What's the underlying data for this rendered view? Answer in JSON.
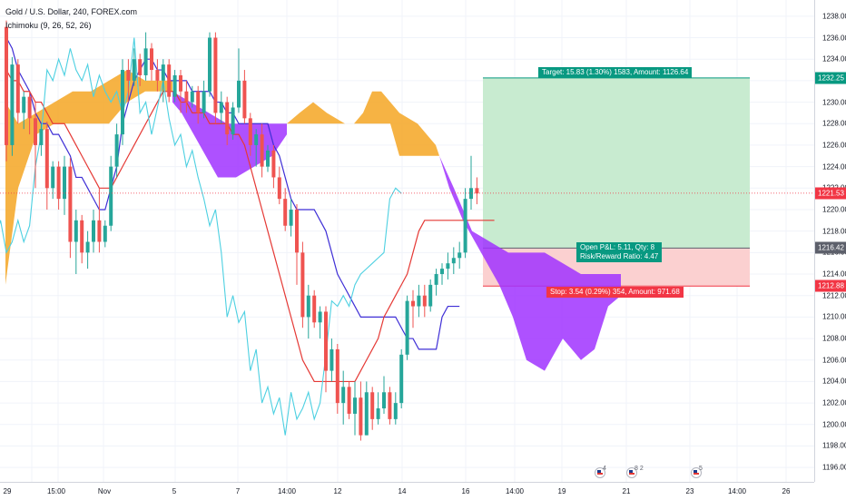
{
  "legend": {
    "symbol_line": "Gold / U.S. Dollar, 240, FOREX.com",
    "indicator_line": "Ichimoku (9, 26, 52, 26)"
  },
  "price_axis": {
    "ticks": [
      "1238.00",
      "1236.00",
      "1234.00",
      "1232.00",
      "1230.00",
      "1228.00",
      "1226.00",
      "1224.00",
      "1222.00",
      "1220.00",
      "1218.00",
      "1216.00",
      "1214.00",
      "1212.00",
      "1210.00",
      "1208.00",
      "1206.00",
      "1204.00",
      "1202.00",
      "1200.00",
      "1198.00",
      "1196.00"
    ],
    "tick_values": [
      1238,
      1236,
      1234,
      1232,
      1230,
      1228,
      1226,
      1224,
      1222,
      1220,
      1218,
      1216,
      1214,
      1212,
      1210,
      1208,
      1206,
      1204,
      1202,
      1200,
      1198,
      1196
    ],
    "tags": [
      {
        "label": "1232.25",
        "value": 1232.25,
        "color": "#089981"
      },
      {
        "label": "1221.53",
        "value": 1221.53,
        "color": "#f23645"
      },
      {
        "label": "1216.42",
        "value": 1216.42,
        "color": "#5d606b"
      },
      {
        "label": "1212.88",
        "value": 1212.88,
        "color": "#f23645"
      }
    ]
  },
  "time_axis": {
    "labels": [
      "29",
      "15:00",
      "Nov",
      "5",
      "7",
      "14:00",
      "12",
      "14",
      "16",
      "14:00",
      "19",
      "21",
      "23",
      "14:00",
      "26"
    ]
  },
  "position": {
    "target_label": "Target: 15.83 (1.30%) 1583, Amount: 1126.64",
    "center_label_line1": "Open P&L: 5.11, Qty: 8",
    "center_label_line2": "Risk/Reward Ratio: 4.47",
    "stop_label": "Stop: 3.54 (0.29%) 354, Amount: 971.68",
    "entry": 1216.42,
    "target": 1232.25,
    "stop": 1212.88,
    "current": 1221.53
  },
  "events": [
    {
      "count": "4",
      "icon": "us-flag-icon"
    },
    {
      "count": "8 2",
      "icon": "us-flag-icon"
    },
    {
      "count": "5",
      "icon": "us-flag-icon"
    }
  ],
  "colors": {
    "up": "#26a69a",
    "down": "#ef5350",
    "tenkan": "#3f2fd6",
    "kijun": "#e53935",
    "chikou": "#4dd0e1",
    "kumo_bull": "#f5a623",
    "kumo_bear": "#a033ff",
    "profit_zone": "#c8ebd0",
    "loss_zone": "#fbd0d0"
  },
  "chart_data": {
    "type": "candlestick",
    "title": "Gold / U.S. Dollar, 240, FOREX.com",
    "ylim": [
      1195,
      1239
    ],
    "indicator": "Ichimoku (9, 26, 52, 26)",
    "candles": [
      {
        "o": 1237.0,
        "h": 1237.6,
        "c": 1226.0,
        "l": 1224.5
      },
      {
        "o": 1226.0,
        "h": 1234.2,
        "c": 1233.5,
        "l": 1225.0
      },
      {
        "o": 1233.5,
        "h": 1234.0,
        "c": 1229.0,
        "l": 1228.0
      },
      {
        "o": 1229.0,
        "h": 1231.0,
        "c": 1230.5,
        "l": 1227.5
      },
      {
        "o": 1230.5,
        "h": 1231.0,
        "c": 1228.5,
        "l": 1227.0
      },
      {
        "o": 1228.5,
        "h": 1230.0,
        "c": 1226.0,
        "l": 1222.0
      },
      {
        "o": 1226.0,
        "h": 1228.0,
        "c": 1227.5,
        "l": 1225.0
      },
      {
        "o": 1227.5,
        "h": 1228.2,
        "c": 1222.0,
        "l": 1220.0
      },
      {
        "o": 1222.0,
        "h": 1224.5,
        "c": 1224.0,
        "l": 1221.0
      },
      {
        "o": 1224.0,
        "h": 1224.5,
        "c": 1221.0,
        "l": 1220.0
      },
      {
        "o": 1221.0,
        "h": 1225.0,
        "c": 1224.0,
        "l": 1219.5
      },
      {
        "o": 1224.0,
        "h": 1224.8,
        "c": 1217.0,
        "l": 1215.5
      },
      {
        "o": 1217.0,
        "h": 1220.0,
        "c": 1219.0,
        "l": 1214.0
      },
      {
        "o": 1219.0,
        "h": 1219.5,
        "c": 1216.0,
        "l": 1215.0
      },
      {
        "o": 1216.0,
        "h": 1218.0,
        "c": 1217.0,
        "l": 1214.5
      },
      {
        "o": 1217.0,
        "h": 1220.0,
        "c": 1219.0,
        "l": 1216.0
      },
      {
        "o": 1219.0,
        "h": 1222.0,
        "c": 1217.0,
        "l": 1216.0
      },
      {
        "o": 1217.0,
        "h": 1219.0,
        "c": 1218.5,
        "l": 1216.5
      },
      {
        "o": 1218.5,
        "h": 1225.0,
        "c": 1224.0,
        "l": 1218.0
      },
      {
        "o": 1224.0,
        "h": 1228.0,
        "c": 1227.0,
        "l": 1223.0
      },
      {
        "o": 1227.0,
        "h": 1234.0,
        "c": 1233.0,
        "l": 1226.0
      },
      {
        "o": 1233.0,
        "h": 1234.0,
        "c": 1232.0,
        "l": 1230.0
      },
      {
        "o": 1232.0,
        "h": 1235.0,
        "c": 1234.0,
        "l": 1231.5
      },
      {
        "o": 1234.0,
        "h": 1234.5,
        "c": 1232.5,
        "l": 1231.5
      },
      {
        "o": 1232.5,
        "h": 1236.5,
        "c": 1235.0,
        "l": 1232.0
      },
      {
        "o": 1235.0,
        "h": 1235.5,
        "c": 1233.0,
        "l": 1232.0
      },
      {
        "o": 1233.0,
        "h": 1234.0,
        "c": 1232.0,
        "l": 1231.0
      },
      {
        "o": 1232.0,
        "h": 1234.0,
        "c": 1233.5,
        "l": 1230.0
      },
      {
        "o": 1233.5,
        "h": 1234.0,
        "c": 1230.5,
        "l": 1230.0
      },
      {
        "o": 1230.5,
        "h": 1233.0,
        "c": 1232.5,
        "l": 1230.0
      },
      {
        "o": 1232.5,
        "h": 1233.0,
        "c": 1231.0,
        "l": 1229.0
      },
      {
        "o": 1231.0,
        "h": 1232.0,
        "c": 1230.0,
        "l": 1229.0
      },
      {
        "o": 1230.0,
        "h": 1231.5,
        "c": 1231.0,
        "l": 1229.5
      },
      {
        "o": 1231.0,
        "h": 1231.5,
        "c": 1229.0,
        "l": 1228.0
      },
      {
        "o": 1229.0,
        "h": 1232.0,
        "c": 1231.0,
        "l": 1228.5
      },
      {
        "o": 1231.0,
        "h": 1236.5,
        "c": 1236.0,
        "l": 1230.5
      },
      {
        "o": 1236.0,
        "h": 1236.5,
        "c": 1229.0,
        "l": 1228.0
      },
      {
        "o": 1229.0,
        "h": 1231.0,
        "c": 1230.0,
        "l": 1228.0
      },
      {
        "o": 1230.0,
        "h": 1230.5,
        "c": 1227.0,
        "l": 1226.0
      },
      {
        "o": 1227.0,
        "h": 1230.0,
        "c": 1229.5,
        "l": 1226.5
      },
      {
        "o": 1229.5,
        "h": 1235.0,
        "c": 1232.0,
        "l": 1229.0
      },
      {
        "o": 1232.0,
        "h": 1233.0,
        "c": 1228.5,
        "l": 1228.0
      },
      {
        "o": 1228.5,
        "h": 1229.0,
        "c": 1226.0,
        "l": 1225.0
      },
      {
        "o": 1226.0,
        "h": 1227.5,
        "c": 1227.0,
        "l": 1224.0
      },
      {
        "o": 1227.0,
        "h": 1228.0,
        "c": 1224.0,
        "l": 1223.0
      },
      {
        "o": 1224.0,
        "h": 1226.0,
        "c": 1225.5,
        "l": 1223.5
      },
      {
        "o": 1225.5,
        "h": 1226.0,
        "c": 1223.0,
        "l": 1222.0
      },
      {
        "o": 1223.0,
        "h": 1224.0,
        "c": 1221.0,
        "l": 1220.5
      },
      {
        "o": 1221.0,
        "h": 1222.0,
        "c": 1218.5,
        "l": 1218.0
      },
      {
        "o": 1218.5,
        "h": 1221.0,
        "c": 1220.0,
        "l": 1217.5
      },
      {
        "o": 1220.0,
        "h": 1220.5,
        "c": 1216.0,
        "l": 1213.0
      },
      {
        "o": 1216.0,
        "h": 1217.0,
        "c": 1210.0,
        "l": 1209.0
      },
      {
        "o": 1210.0,
        "h": 1213.0,
        "c": 1212.0,
        "l": 1208.0
      },
      {
        "o": 1212.0,
        "h": 1212.5,
        "c": 1209.5,
        "l": 1209.0
      },
      {
        "o": 1209.5,
        "h": 1211.0,
        "c": 1210.5,
        "l": 1208.0
      },
      {
        "o": 1210.5,
        "h": 1211.0,
        "c": 1205.0,
        "l": 1203.0
      },
      {
        "o": 1205.0,
        "h": 1208.0,
        "c": 1207.0,
        "l": 1204.0
      },
      {
        "o": 1207.0,
        "h": 1207.5,
        "c": 1202.0,
        "l": 1201.0
      },
      {
        "o": 1202.0,
        "h": 1205.0,
        "c": 1203.5,
        "l": 1200.0
      },
      {
        "o": 1203.5,
        "h": 1204.0,
        "c": 1201.0,
        "l": 1200.5
      },
      {
        "o": 1201.0,
        "h": 1204.0,
        "c": 1202.5,
        "l": 1199.0
      },
      {
        "o": 1202.5,
        "h": 1204.0,
        "c": 1199.0,
        "l": 1198.5
      },
      {
        "o": 1199.0,
        "h": 1204.0,
        "c": 1203.0,
        "l": 1199.0
      },
      {
        "o": 1203.0,
        "h": 1203.5,
        "c": 1200.5,
        "l": 1199.5
      },
      {
        "o": 1200.5,
        "h": 1203.0,
        "c": 1201.5,
        "l": 1200.0
      },
      {
        "o": 1201.5,
        "h": 1204.5,
        "c": 1203.0,
        "l": 1201.0
      },
      {
        "o": 1203.0,
        "h": 1203.5,
        "c": 1200.5,
        "l": 1200.0
      },
      {
        "o": 1200.5,
        "h": 1203.0,
        "c": 1202.0,
        "l": 1200.0
      },
      {
        "o": 1202.0,
        "h": 1207.0,
        "c": 1206.5,
        "l": 1201.5
      },
      {
        "o": 1206.5,
        "h": 1212.0,
        "c": 1211.5,
        "l": 1206.0
      },
      {
        "o": 1211.5,
        "h": 1212.5,
        "c": 1211.0,
        "l": 1209.0
      },
      {
        "o": 1211.0,
        "h": 1213.0,
        "c": 1212.0,
        "l": 1210.0
      },
      {
        "o": 1212.0,
        "h": 1213.0,
        "c": 1211.0,
        "l": 1210.0
      },
      {
        "o": 1211.0,
        "h": 1213.5,
        "c": 1213.0,
        "l": 1210.5
      },
      {
        "o": 1213.0,
        "h": 1214.5,
        "c": 1214.0,
        "l": 1212.0
      },
      {
        "o": 1214.0,
        "h": 1215.0,
        "c": 1214.5,
        "l": 1213.0
      },
      {
        "o": 1214.5,
        "h": 1216.0,
        "c": 1215.0,
        "l": 1213.5
      },
      {
        "o": 1215.0,
        "h": 1216.5,
        "c": 1215.5,
        "l": 1214.0
      },
      {
        "o": 1215.5,
        "h": 1217.0,
        "c": 1216.0,
        "l": 1214.5
      },
      {
        "o": 1216.0,
        "h": 1222.0,
        "c": 1221.0,
        "l": 1215.5
      },
      {
        "o": 1221.0,
        "h": 1225.0,
        "c": 1222.0,
        "l": 1220.0
      },
      {
        "o": 1222.0,
        "h": 1223.0,
        "c": 1221.5,
        "l": 1220.5
      }
    ],
    "tenkan": [
      1236,
      1235,
      1233,
      1232,
      1231,
      1229,
      1228,
      1228,
      1227,
      1227,
      1226,
      1225,
      1223,
      1223,
      1222,
      1221,
      1220,
      1220,
      1222,
      1224,
      1228,
      1230,
      1232,
      1233,
      1234,
      1234,
      1233,
      1233,
      1232,
      1232,
      1232,
      1232,
      1231,
      1231,
      1231,
      1231,
      1230,
      1230,
      1229,
      1229,
      1228,
      1228,
      1228,
      1228,
      1228,
      1228,
      1226,
      1225,
      1223,
      1221,
      1220,
      1220,
      1220,
      1220,
      1219,
      1218,
      1216,
      1214,
      1213,
      1212,
      1211,
      1210,
      1210,
      1210,
      1210,
      1210,
      1210,
      1210,
      1209,
      1208,
      1208,
      1207,
      1207,
      1207,
      1207,
      1210,
      1211,
      1211,
      1211
    ],
    "kijun": [
      1233,
      1232,
      1232,
      1231,
      1231,
      1230,
      1230,
      1229,
      1228,
      1228,
      1228,
      1227,
      1226,
      1225,
      1224,
      1223,
      1222,
      1222,
      1222,
      1223,
      1224,
      1225,
      1226,
      1227,
      1228,
      1229,
      1230,
      1231,
      1231,
      1231,
      1230,
      1230,
      1229,
      1229,
      1229,
      1228,
      1228,
      1228,
      1228,
      1227,
      1227,
      1226,
      1224,
      1222,
      1220,
      1218,
      1216,
      1214,
      1212,
      1210,
      1208,
      1206,
      1205,
      1204,
      1204,
      1204,
      1204,
      1204,
      1204,
      1204,
      1204,
      1205,
      1206,
      1207,
      1208,
      1210,
      1211,
      1212,
      1213,
      1214,
      1216,
      1218,
      1219,
      1219,
      1219,
      1219,
      1219,
      1219,
      1219,
      1219,
      1219,
      1219,
      1219,
      1219,
      1219
    ]
  }
}
